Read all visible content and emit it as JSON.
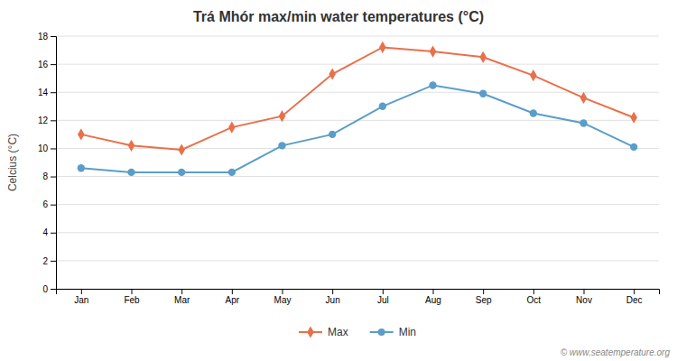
{
  "chart_data": {
    "type": "line",
    "title": "Trá Mhór max/min water temperatures (°C)",
    "ylabel": "Celcius (°C)",
    "categories": [
      "Jan",
      "Feb",
      "Mar",
      "Apr",
      "May",
      "Jun",
      "Jul",
      "Aug",
      "Sep",
      "Oct",
      "Nov",
      "Dec"
    ],
    "series": [
      {
        "name": "Max",
        "color": "#e8704a",
        "marker": "diamond",
        "values": [
          11.0,
          10.2,
          9.9,
          11.5,
          12.3,
          15.3,
          17.2,
          16.9,
          16.5,
          15.2,
          13.6,
          12.2
        ]
      },
      {
        "name": "Min",
        "color": "#5b9dc9",
        "marker": "circle",
        "values": [
          8.6,
          8.3,
          8.3,
          8.3,
          10.2,
          11.0,
          13.0,
          14.5,
          13.9,
          12.5,
          11.8,
          10.1
        ]
      }
    ],
    "ylim": [
      0,
      18
    ],
    "yticks": [
      0,
      2,
      4,
      6,
      8,
      10,
      12,
      14,
      16,
      18
    ],
    "grid": true,
    "legend": "bottom",
    "annotations": [
      "© www.seatemperature.org"
    ]
  }
}
